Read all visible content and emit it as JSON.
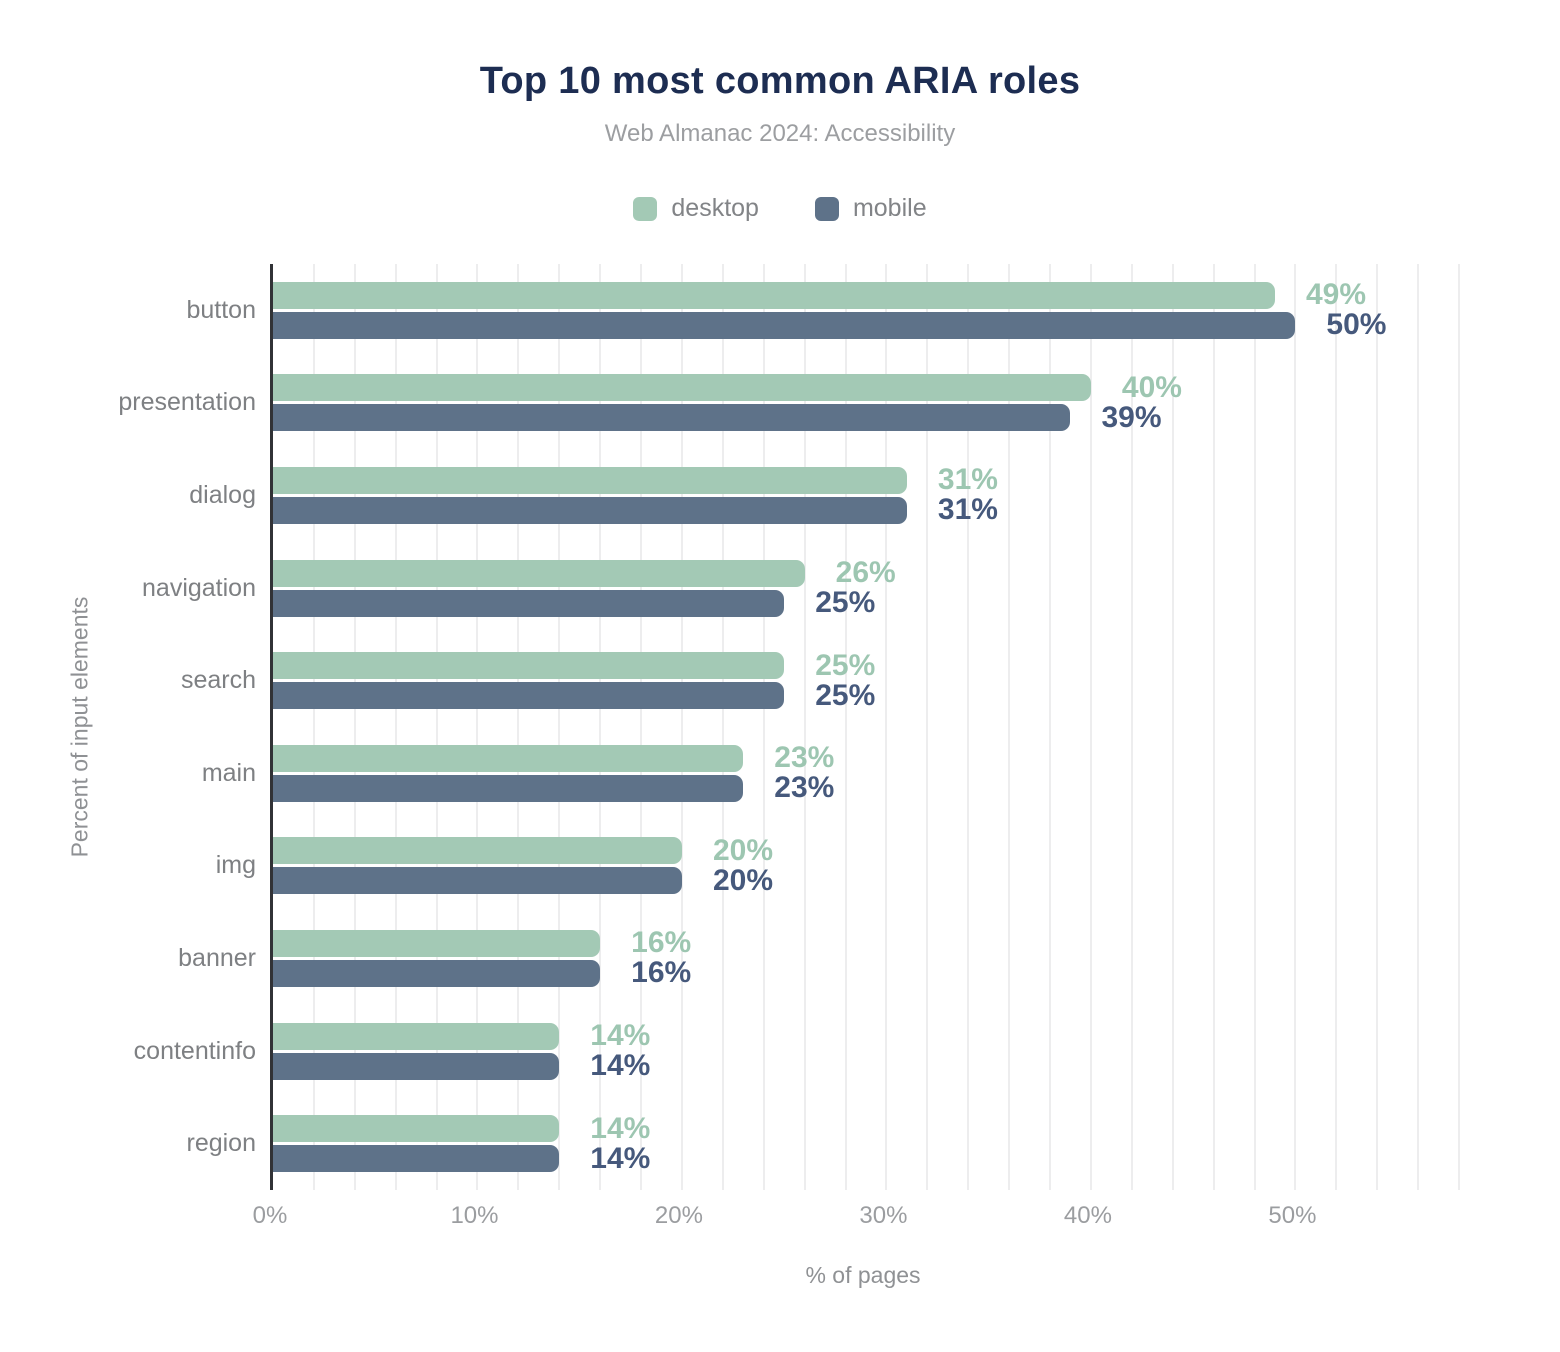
{
  "title": "Top 10 most common ARIA roles",
  "subtitle": "Web Almanac 2024: Accessibility",
  "legend": [
    {
      "label": "desktop",
      "color": "#a3c9b5"
    },
    {
      "label": "mobile",
      "color": "#5e7289"
    }
  ],
  "chart_data": {
    "type": "bar",
    "orientation": "horizontal",
    "title": "Top 10 most common ARIA roles",
    "subtitle": "Web Almanac 2024: Accessibility",
    "categories": [
      "button",
      "presentation",
      "dialog",
      "navigation",
      "search",
      "main",
      "img",
      "banner",
      "contentinfo",
      "region"
    ],
    "series": [
      {
        "name": "desktop",
        "color": "#a3c9b5",
        "label_color": "#9dc6b1",
        "values": [
          49,
          40,
          31,
          26,
          25,
          23,
          20,
          16,
          14,
          14
        ]
      },
      {
        "name": "mobile",
        "color": "#5e7289",
        "label_color": "#46597c",
        "values": [
          50,
          39,
          31,
          25,
          25,
          23,
          20,
          16,
          14,
          14
        ]
      }
    ],
    "value_suffix": "%",
    "xlabel": "% of pages",
    "ylabel": "Percent of input elements",
    "xlim": [
      0,
      58
    ],
    "grid_interval": 2,
    "grid": "vertical-on",
    "legend_position": "top",
    "x_ticks": [
      {
        "label": "0%",
        "value": 0
      },
      {
        "label": "10%",
        "value": 10
      },
      {
        "label": "20%",
        "value": 20
      },
      {
        "label": "30%",
        "value": 30
      },
      {
        "label": "40%",
        "value": 40
      },
      {
        "label": "50%",
        "value": 50
      }
    ]
  }
}
